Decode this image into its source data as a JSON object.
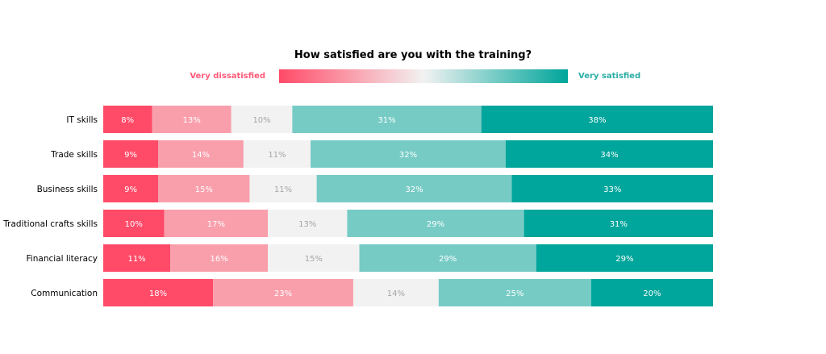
{
  "chart_data": {
    "type": "bar",
    "orientation": "horizontal",
    "stacked": true,
    "normalized": true,
    "title": "How satisfied are you with the training?",
    "legend": {
      "left_label": "Very dissatisfied",
      "right_label": "Very satisfied",
      "placement": "top-center",
      "style": "gradient"
    },
    "categories": [
      "IT skills",
      "Trade skills",
      "Business skills",
      "Traditional crafts skills",
      "Financial literacy",
      "Communication"
    ],
    "series": [
      {
        "color": "#ff4a68",
        "label_color": "#ffffff",
        "values": [
          8,
          9,
          9,
          10,
          11,
          18
        ]
      },
      {
        "color": "#f99fac",
        "label_color": "#ffffff",
        "values": [
          13,
          14,
          15,
          17,
          16,
          23
        ]
      },
      {
        "color": "#f2f2f2",
        "label_color": "#a6a6a6",
        "values": [
          10,
          11,
          11,
          13,
          15,
          14
        ]
      },
      {
        "color": "#76cbc5",
        "label_color": "#ffffff",
        "values": [
          31,
          32,
          32,
          29,
          29,
          25
        ]
      },
      {
        "color": "#00a59b",
        "label_color": "#ffffff",
        "values": [
          38,
          34,
          33,
          31,
          29,
          20
        ]
      }
    ],
    "value_format": "{v}%",
    "grid": false,
    "xlim": [
      0,
      100
    ]
  },
  "colors": {
    "left_label": "#ff5a78",
    "right_label": "#2aaea5"
  }
}
